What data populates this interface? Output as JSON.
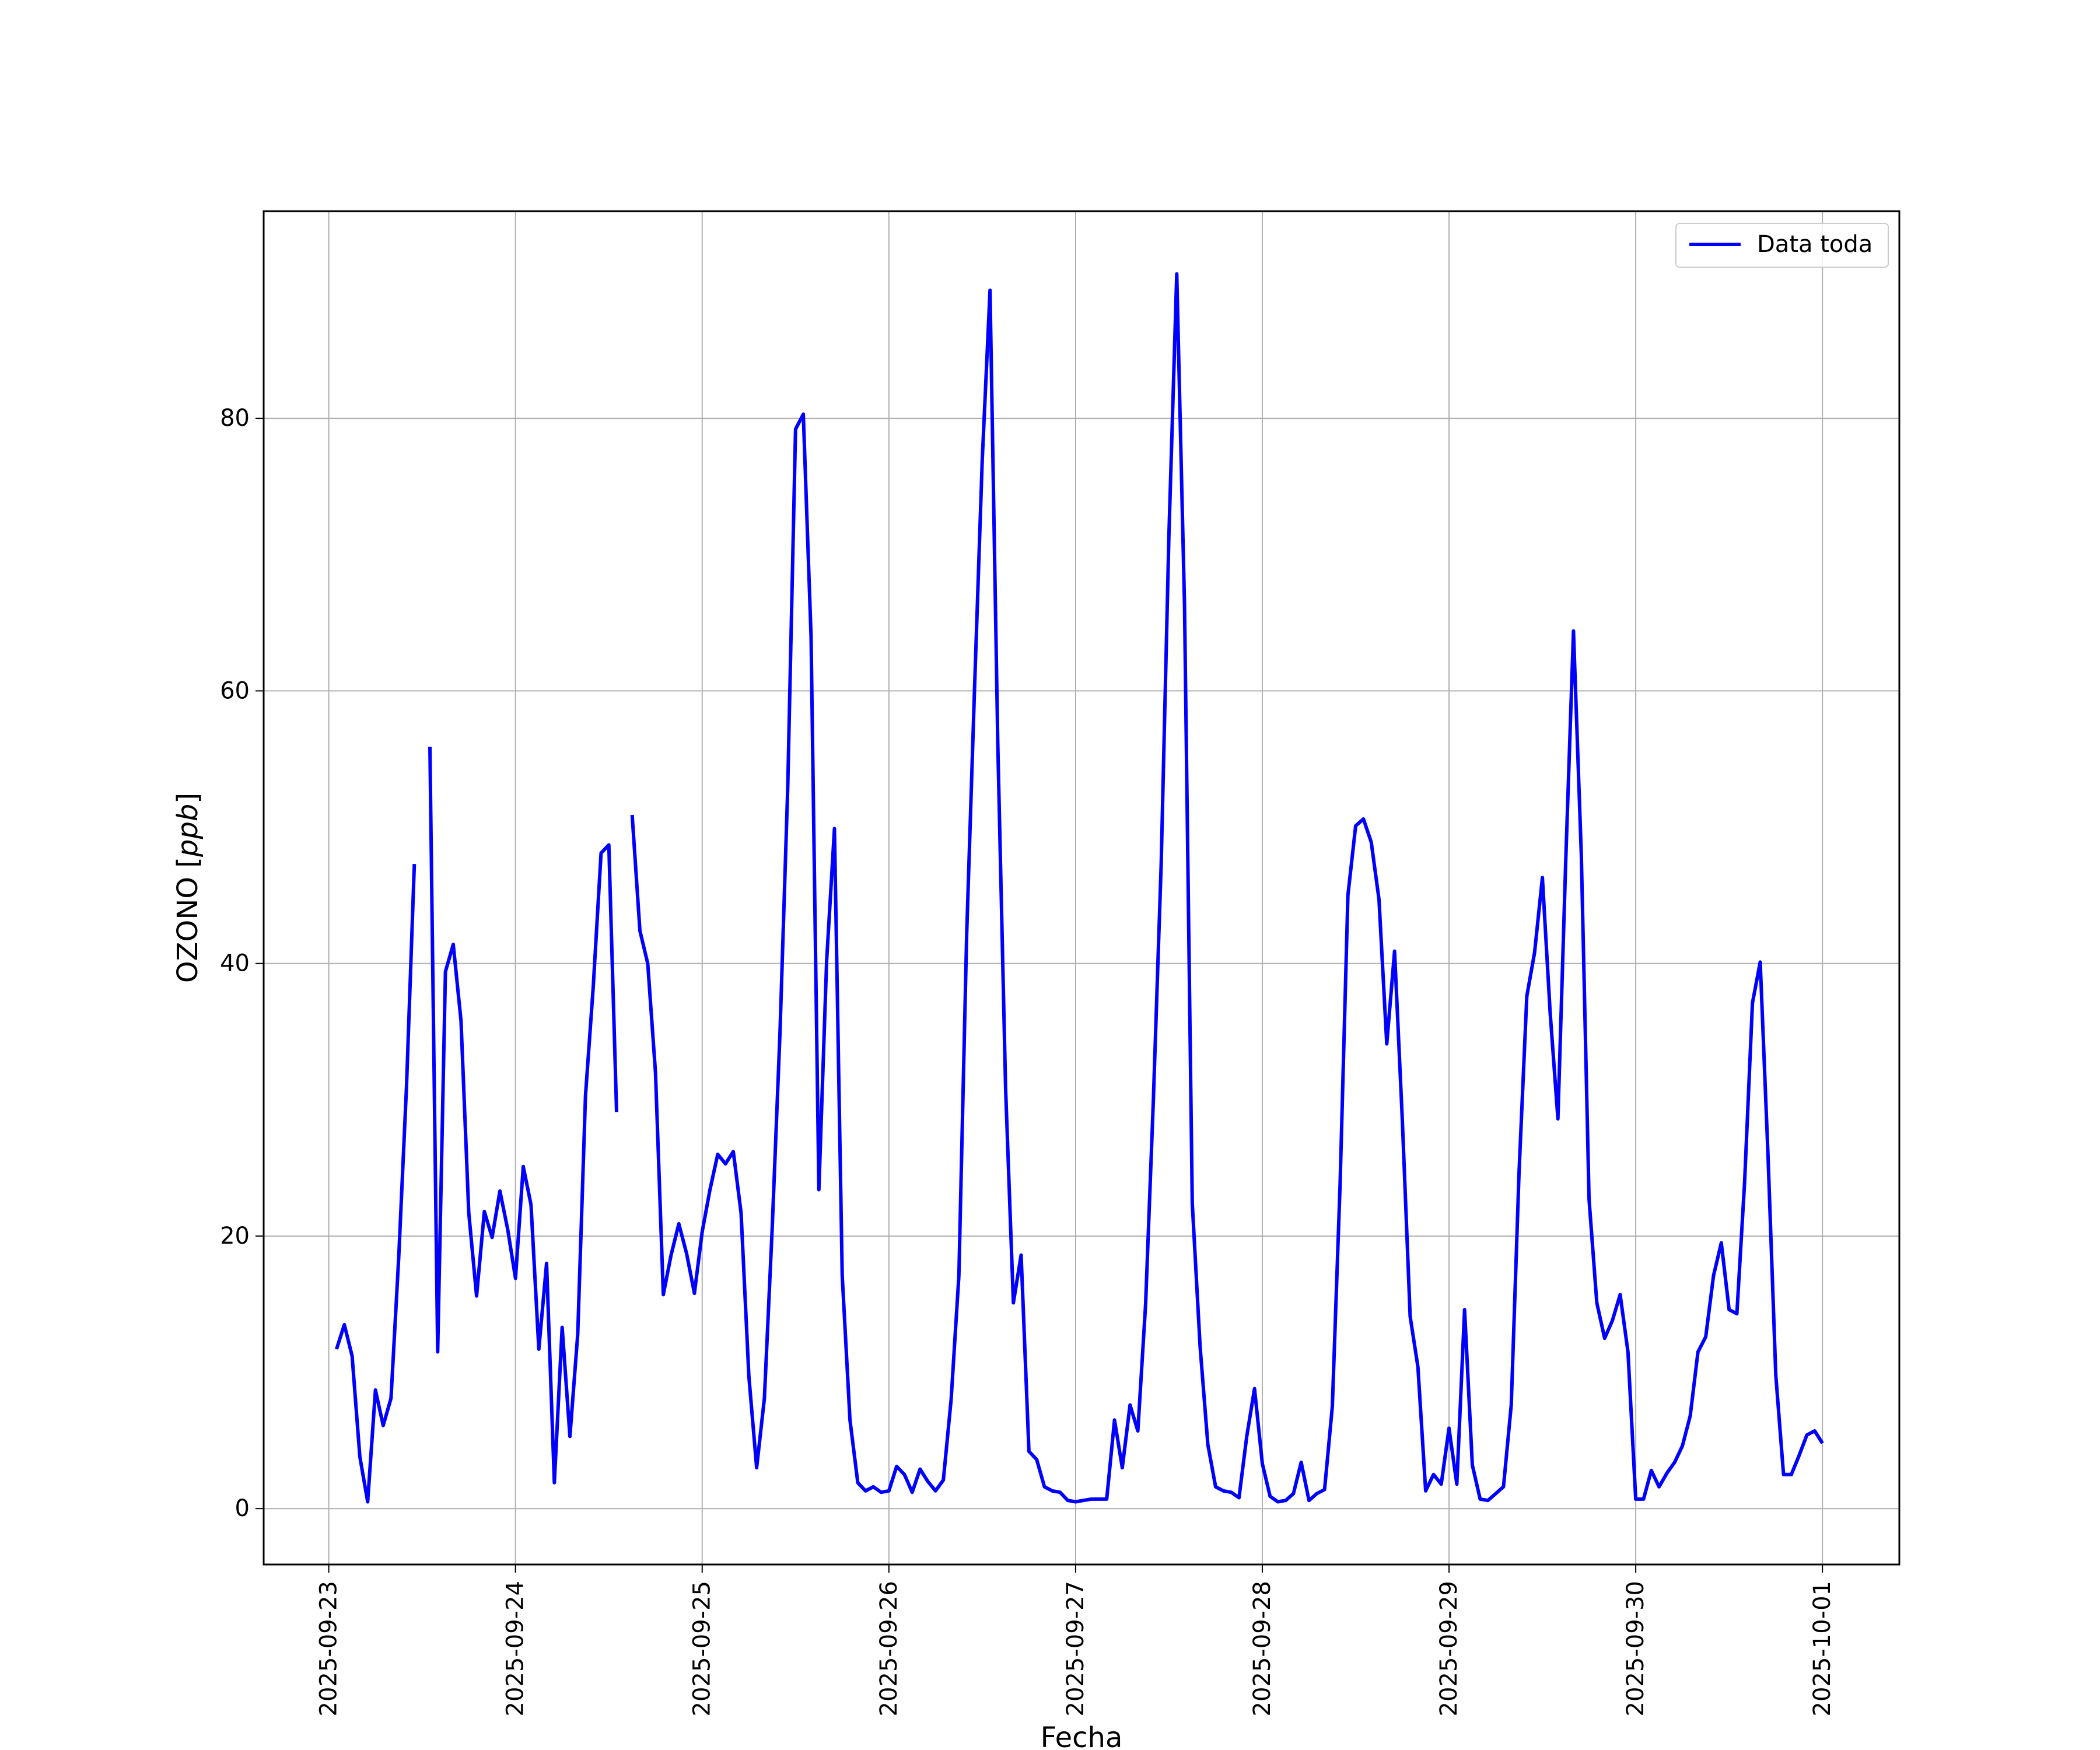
{
  "chart_data": {
    "type": "line",
    "title": "",
    "xlabel": "Fecha",
    "ylabel": "OZONO [ppb]",
    "ylabel_prefix": "OZONO [",
    "ylabel_unit": "ppb",
    "ylabel_suffix": "]",
    "grid": true,
    "legend_position": "top-right",
    "ylim": [
      -4.1,
      95.2
    ],
    "xlim": [
      "2025-09-22 15:38",
      "2025-10-01 09:53"
    ],
    "x_ticks": [
      "2025-09-23",
      "2025-09-24",
      "2025-09-25",
      "2025-09-26",
      "2025-09-27",
      "2025-09-28",
      "2025-09-29",
      "2025-09-30",
      "2025-10-01"
    ],
    "y_ticks": [
      0,
      20,
      40,
      60,
      80
    ],
    "series": [
      {
        "name": "Data toda",
        "color": "#0000ff",
        "segments": [
          [
            [
              "2025-09-23 01:00",
              11.7
            ],
            [
              "2025-09-23 02:00",
              13.5
            ],
            [
              "2025-09-23 03:00",
              11.2
            ],
            [
              "2025-09-23 04:00",
              3.8
            ],
            [
              "2025-09-23 05:00",
              0.5
            ],
            [
              "2025-09-23 06:00",
              8.7
            ],
            [
              "2025-09-23 07:00",
              6.1
            ],
            [
              "2025-09-23 08:00",
              8.1
            ],
            [
              "2025-09-23 09:00",
              18.5
            ],
            [
              "2025-09-23 10:00",
              31.0
            ],
            [
              "2025-09-23 11:00",
              47.3
            ]
          ],
          [
            [
              "2025-09-23 13:00",
              55.9
            ],
            [
              "2025-09-23 14:00",
              11.5
            ],
            [
              "2025-09-23 15:00",
              39.4
            ],
            [
              "2025-09-23 16:00",
              41.4
            ],
            [
              "2025-09-23 17:00",
              35.8
            ],
            [
              "2025-09-23 18:00",
              21.7
            ],
            [
              "2025-09-23 19:00",
              15.6
            ],
            [
              "2025-09-23 20:00",
              21.8
            ],
            [
              "2025-09-23 21:00",
              19.9
            ],
            [
              "2025-09-23 22:00",
              23.3
            ],
            [
              "2025-09-23 23:00",
              20.5
            ],
            [
              "2025-09-24 00:00",
              16.9
            ],
            [
              "2025-09-24 01:00",
              25.1
            ],
            [
              "2025-09-24 02:00",
              22.3
            ],
            [
              "2025-09-24 03:00",
              11.7
            ],
            [
              "2025-09-24 04:00",
              18.0
            ],
            [
              "2025-09-24 05:00",
              1.9
            ],
            [
              "2025-09-24 06:00",
              13.3
            ],
            [
              "2025-09-24 07:00",
              5.3
            ],
            [
              "2025-09-24 08:00",
              12.8
            ],
            [
              "2025-09-24 09:00",
              30.3
            ],
            [
              "2025-09-24 10:00",
              38.3
            ],
            [
              "2025-09-24 11:00",
              48.1
            ],
            [
              "2025-09-24 12:00",
              48.7
            ],
            [
              "2025-09-24 13:00",
              29.1
            ]
          ],
          [
            [
              "2025-09-24 15:00",
              50.9
            ],
            [
              "2025-09-24 16:00",
              42.4
            ],
            [
              "2025-09-24 17:00",
              40.0
            ],
            [
              "2025-09-24 18:00",
              32.0
            ],
            [
              "2025-09-24 19:00",
              15.7
            ],
            [
              "2025-09-24 20:00",
              18.6
            ],
            [
              "2025-09-24 21:00",
              20.9
            ],
            [
              "2025-09-24 22:00",
              18.7
            ],
            [
              "2025-09-24 23:00",
              15.8
            ],
            [
              "2025-09-25 00:00",
              20.3
            ],
            [
              "2025-09-25 01:00",
              23.4
            ],
            [
              "2025-09-25 02:00",
              26.0
            ],
            [
              "2025-09-25 03:00",
              25.3
            ],
            [
              "2025-09-25 04:00",
              26.2
            ],
            [
              "2025-09-25 05:00",
              21.7
            ],
            [
              "2025-09-25 06:00",
              9.7
            ],
            [
              "2025-09-25 07:00",
              3.0
            ],
            [
              "2025-09-25 08:00",
              8.1
            ],
            [
              "2025-09-25 09:00",
              20.6
            ],
            [
              "2025-09-25 10:00",
              34.9
            ],
            [
              "2025-09-25 11:00",
              52.9
            ],
            [
              "2025-09-25 12:00",
              79.2
            ],
            [
              "2025-09-25 13:00",
              80.3
            ],
            [
              "2025-09-25 14:00",
              64.0
            ],
            [
              "2025-09-25 15:00",
              23.4
            ],
            [
              "2025-09-25 16:00",
              40.2
            ],
            [
              "2025-09-25 17:00",
              49.9
            ],
            [
              "2025-09-25 18:00",
              17.1
            ],
            [
              "2025-09-25 19:00",
              6.5
            ],
            [
              "2025-09-25 20:00",
              1.9
            ],
            [
              "2025-09-25 21:00",
              1.3
            ],
            [
              "2025-09-25 22:00",
              1.6
            ],
            [
              "2025-09-25 23:00",
              1.2
            ],
            [
              "2025-09-26 00:00",
              1.3
            ],
            [
              "2025-09-26 01:00",
              3.1
            ],
            [
              "2025-09-26 02:00",
              2.5
            ],
            [
              "2025-09-26 03:00",
              1.2
            ],
            [
              "2025-09-26 04:00",
              2.9
            ],
            [
              "2025-09-26 05:00",
              2.0
            ],
            [
              "2025-09-26 06:00",
              1.3
            ],
            [
              "2025-09-26 07:00",
              2.1
            ],
            [
              "2025-09-26 08:00",
              8.0
            ],
            [
              "2025-09-26 09:00",
              17.1
            ],
            [
              "2025-09-26 10:00",
              42.2
            ],
            [
              "2025-09-26 11:00",
              60.0
            ],
            [
              "2025-09-26 12:00",
              76.9
            ],
            [
              "2025-09-26 13:00",
              89.4
            ],
            [
              "2025-09-26 14:00",
              56.1
            ],
            [
              "2025-09-26 15:00",
              30.8
            ],
            [
              "2025-09-26 16:00",
              15.1
            ],
            [
              "2025-09-26 17:00",
              18.6
            ],
            [
              "2025-09-26 18:00",
              4.2
            ],
            [
              "2025-09-26 19:00",
              3.6
            ],
            [
              "2025-09-26 20:00",
              1.6
            ],
            [
              "2025-09-26 21:00",
              1.3
            ],
            [
              "2025-09-26 22:00",
              1.2
            ],
            [
              "2025-09-26 23:00",
              0.6
            ],
            [
              "2025-09-27 00:00",
              0.5
            ],
            [
              "2025-09-27 01:00",
              0.6
            ],
            [
              "2025-09-27 02:00",
              0.7
            ],
            [
              "2025-09-27 03:00",
              0.7
            ],
            [
              "2025-09-27 04:00",
              0.7
            ],
            [
              "2025-09-27 05:00",
              6.5
            ],
            [
              "2025-09-27 06:00",
              3.0
            ],
            [
              "2025-09-27 07:00",
              7.6
            ],
            [
              "2025-09-27 08:00",
              5.7
            ],
            [
              "2025-09-27 09:00",
              15.0
            ],
            [
              "2025-09-27 10:00",
              30.1
            ],
            [
              "2025-09-27 11:00",
              47.3
            ],
            [
              "2025-09-27 12:00",
              71.5
            ],
            [
              "2025-09-27 13:00",
              90.6
            ],
            [
              "2025-09-27 14:00",
              66.3
            ],
            [
              "2025-09-27 15:00",
              22.4
            ],
            [
              "2025-09-27 16:00",
              11.9
            ],
            [
              "2025-09-27 17:00",
              4.7
            ],
            [
              "2025-09-27 18:00",
              1.6
            ],
            [
              "2025-09-27 19:00",
              1.3
            ],
            [
              "2025-09-27 20:00",
              1.2
            ],
            [
              "2025-09-27 21:00",
              0.8
            ],
            [
              "2025-09-27 22:00",
              5.3
            ],
            [
              "2025-09-27 23:00",
              8.8
            ],
            [
              "2025-09-28 00:00",
              3.3
            ],
            [
              "2025-09-28 01:00",
              0.9
            ],
            [
              "2025-09-28 02:00",
              0.5
            ],
            [
              "2025-09-28 03:00",
              0.6
            ],
            [
              "2025-09-28 04:00",
              1.1
            ],
            [
              "2025-09-28 05:00",
              3.4
            ],
            [
              "2025-09-28 06:00",
              0.6
            ],
            [
              "2025-09-28 07:00",
              1.1
            ],
            [
              "2025-09-28 08:00",
              1.4
            ],
            [
              "2025-09-28 09:00",
              7.5
            ],
            [
              "2025-09-28 10:00",
              23.8
            ],
            [
              "2025-09-28 11:00",
              45.0
            ],
            [
              "2025-09-28 12:00",
              50.1
            ],
            [
              "2025-09-28 13:00",
              50.6
            ],
            [
              "2025-09-28 14:00",
              48.9
            ],
            [
              "2025-09-28 15:00",
              44.7
            ],
            [
              "2025-09-28 16:00",
              34.1
            ],
            [
              "2025-09-28 17:00",
              40.9
            ],
            [
              "2025-09-28 18:00",
              28.5
            ],
            [
              "2025-09-28 19:00",
              14.1
            ],
            [
              "2025-09-28 20:00",
              10.4
            ],
            [
              "2025-09-28 21:00",
              1.3
            ],
            [
              "2025-09-28 22:00",
              2.5
            ],
            [
              "2025-09-28 23:00",
              1.8
            ],
            [
              "2025-09-29 00:00",
              5.9
            ],
            [
              "2025-09-29 01:00",
              1.8
            ],
            [
              "2025-09-29 02:00",
              14.6
            ],
            [
              "2025-09-29 03:00",
              3.2
            ],
            [
              "2025-09-29 04:00",
              0.7
            ],
            [
              "2025-09-29 05:00",
              0.6
            ],
            [
              "2025-09-29 06:00",
              1.1
            ],
            [
              "2025-09-29 07:00",
              1.6
            ],
            [
              "2025-09-29 08:00",
              7.6
            ],
            [
              "2025-09-29 09:00",
              24.7
            ],
            [
              "2025-09-29 10:00",
              37.6
            ],
            [
              "2025-09-29 11:00",
              40.8
            ],
            [
              "2025-09-29 12:00",
              46.3
            ],
            [
              "2025-09-29 13:00",
              36.4
            ],
            [
              "2025-09-29 14:00",
              28.6
            ],
            [
              "2025-09-29 15:00",
              47.5
            ],
            [
              "2025-09-29 16:00",
              64.4
            ],
            [
              "2025-09-29 17:00",
              48.0
            ],
            [
              "2025-09-29 18:00",
              22.7
            ],
            [
              "2025-09-29 19:00",
              15.1
            ],
            [
              "2025-09-29 20:00",
              12.5
            ],
            [
              "2025-09-29 21:00",
              13.8
            ],
            [
              "2025-09-29 22:00",
              15.7
            ],
            [
              "2025-09-29 23:00",
              11.5
            ],
            [
              "2025-09-30 00:00",
              0.7
            ],
            [
              "2025-09-30 01:00",
              0.7
            ],
            [
              "2025-09-30 02:00",
              2.8
            ],
            [
              "2025-09-30 03:00",
              1.6
            ],
            [
              "2025-09-30 04:00",
              2.6
            ],
            [
              "2025-09-30 05:00",
              3.4
            ],
            [
              "2025-09-30 06:00",
              4.6
            ],
            [
              "2025-09-30 07:00",
              6.8
            ],
            [
              "2025-09-30 08:00",
              11.5
            ],
            [
              "2025-09-30 09:00",
              12.6
            ],
            [
              "2025-09-30 10:00",
              17.1
            ],
            [
              "2025-09-30 11:00",
              19.5
            ],
            [
              "2025-09-30 12:00",
              14.6
            ],
            [
              "2025-09-30 13:00",
              14.3
            ],
            [
              "2025-09-30 14:00",
              24.0
            ],
            [
              "2025-09-30 15:00",
              37.1
            ],
            [
              "2025-09-30 16:00",
              40.1
            ],
            [
              "2025-09-30 17:00",
              26.0
            ],
            [
              "2025-09-30 18:00",
              9.8
            ],
            [
              "2025-09-30 19:00",
              2.5
            ],
            [
              "2025-09-30 20:00",
              2.5
            ],
            [
              "2025-09-30 21:00",
              3.9
            ],
            [
              "2025-09-30 22:00",
              5.4
            ],
            [
              "2025-09-30 23:00",
              5.7
            ],
            [
              "2025-10-01 00:00",
              4.8
            ]
          ]
        ]
      }
    ]
  }
}
